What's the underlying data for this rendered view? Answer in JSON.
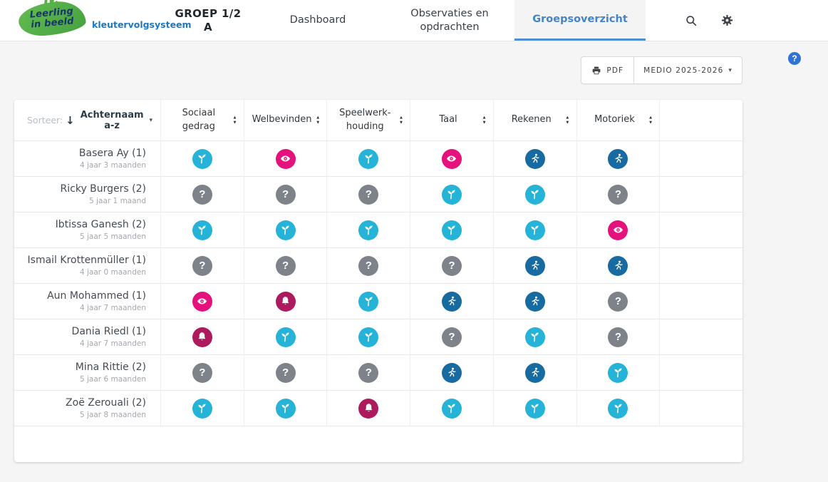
{
  "brand": {
    "line1": "Leerling",
    "line2": "in beeld",
    "subtitle": "kleutervolgsysteem"
  },
  "nav": {
    "group_label": "GROEP 1/2 A",
    "tabs": [
      {
        "label": "Dashboard",
        "active": false
      },
      {
        "label": "Observaties en opdrachten",
        "active": false
      },
      {
        "label": "Groepsoverzicht",
        "active": true
      }
    ],
    "icons": [
      "search-icon",
      "gear-icon"
    ]
  },
  "toolbar": {
    "pdf_label": "PDF",
    "period_label": "MEDIO 2025-2026",
    "help_label": "?"
  },
  "glyphs": {
    "question_icon": "?",
    "sort_arrows_up": "▲",
    "sort_arrows_down": "▼",
    "sort_direction_down": "↓",
    "dropdown_caret": "▾"
  },
  "colors": {
    "sprout": "#25b4d8",
    "eye": "#e5127d",
    "question": "#7e838a",
    "runner": "#186ba1",
    "bell": "#ad1a5e",
    "accent": "#4485c8",
    "tab_underline": "#4e90d3",
    "help_blue": "#3173d4"
  },
  "table": {
    "sort_label": "Sorteer:",
    "sort_value": "Achternaam a-z",
    "columns": [
      "Sociaal gedrag",
      "Welbevinden",
      "Speelwerk-houding",
      "Taal",
      "Rekenen",
      "Motoriek"
    ],
    "rows": [
      {
        "name": "Basera Ay (1)",
        "age": "4 jaar 3 maanden",
        "statuses": [
          "sprout",
          "eye",
          "sprout",
          "eye",
          "runner",
          "runner"
        ]
      },
      {
        "name": "Ricky Burgers (2)",
        "age": "5 jaar 1 maand",
        "statuses": [
          "question",
          "question",
          "question",
          "sprout",
          "sprout",
          "question"
        ]
      },
      {
        "name": "Ibtissa Ganesh (2)",
        "age": "5 jaar 5 maanden",
        "statuses": [
          "sprout",
          "sprout",
          "sprout",
          "sprout",
          "sprout",
          "eye"
        ]
      },
      {
        "name": "Ismail Krottenmüller (1)",
        "age": "4 jaar 0 maanden",
        "statuses": [
          "question",
          "question",
          "question",
          "question",
          "runner",
          "runner"
        ]
      },
      {
        "name": "Aun Mohammed (1)",
        "age": "4 jaar 7 maanden",
        "statuses": [
          "eye",
          "bell",
          "sprout",
          "runner",
          "runner",
          "question"
        ]
      },
      {
        "name": "Dania Riedl (1)",
        "age": "4 jaar 7 maanden",
        "statuses": [
          "bell",
          "sprout",
          "sprout",
          "question",
          "sprout",
          "question"
        ]
      },
      {
        "name": "Mina Rittie (2)",
        "age": "5 jaar 6 maanden",
        "statuses": [
          "question",
          "question",
          "question",
          "runner",
          "runner",
          "sprout"
        ]
      },
      {
        "name": "Zoë Zerouali (2)",
        "age": "5 jaar 8 maanden",
        "statuses": [
          "sprout",
          "sprout",
          "bell",
          "sprout",
          "sprout",
          "sprout"
        ]
      }
    ]
  }
}
